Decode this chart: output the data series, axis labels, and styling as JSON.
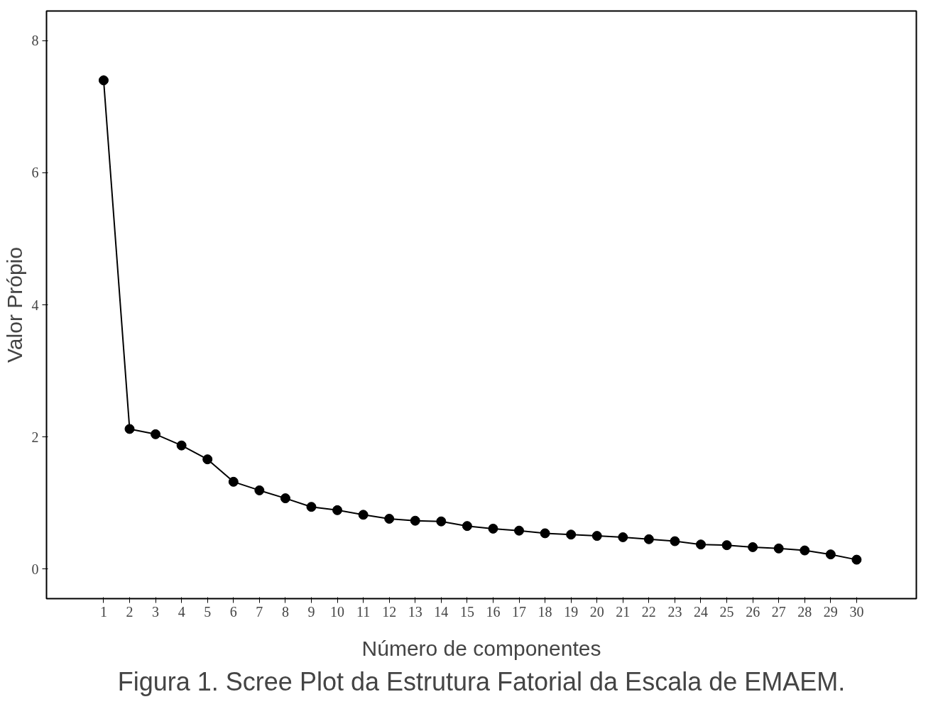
{
  "chart_data": {
    "type": "line",
    "xlabel": "Número de componentes",
    "ylabel": "Valor Própio",
    "annotations": [
      "Figura 1. Scree Plot da Estrutura Fatorial da Escala de EMAEM."
    ],
    "x": [
      1,
      2,
      3,
      4,
      5,
      6,
      7,
      8,
      9,
      10,
      11,
      12,
      13,
      14,
      15,
      16,
      17,
      18,
      19,
      20,
      21,
      22,
      23,
      24,
      25,
      26,
      27,
      28,
      29,
      30
    ],
    "series": [
      {
        "color": "#000000",
        "values": [
          7.4,
          2.12,
          2.04,
          1.87,
          1.66,
          1.32,
          1.19,
          1.07,
          0.94,
          0.89,
          0.82,
          0.76,
          0.73,
          0.72,
          0.65,
          0.61,
          0.58,
          0.54,
          0.52,
          0.5,
          0.48,
          0.45,
          0.42,
          0.37,
          0.36,
          0.33,
          0.31,
          0.28,
          0.22,
          0.14
        ]
      }
    ],
    "xlim": [
      -1.2,
      32.3
    ],
    "xticks": [
      1,
      2,
      3,
      4,
      5,
      6,
      7,
      8,
      9,
      10,
      11,
      12,
      13,
      14,
      15,
      16,
      17,
      18,
      19,
      20,
      21,
      22,
      23,
      24,
      25,
      26,
      27,
      28,
      29,
      30
    ],
    "ylim": [
      -0.45,
      8.45
    ],
    "yticks": [
      0,
      2,
      4,
      6,
      8
    ],
    "grid": false,
    "marker": "circle",
    "line_style": "solid"
  }
}
